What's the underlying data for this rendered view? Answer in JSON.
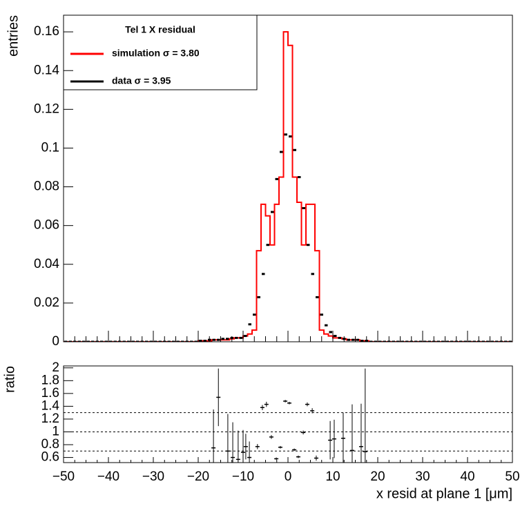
{
  "chart_data": [
    {
      "type": "histogram",
      "ylabel": "entries",
      "legend_title": "Tel 1 X residual",
      "legend": "top-left",
      "xlim": [
        -50,
        50
      ],
      "ylim": [
        0,
        0.1686
      ],
      "yticks": [
        0,
        0.02,
        0.04,
        0.06,
        0.08,
        0.1,
        0.12,
        0.14,
        0.16
      ],
      "bins": [
        -50,
        -49,
        -48,
        -47,
        -46,
        -45,
        -44,
        -43,
        -42,
        -41,
        -40,
        -39,
        -38,
        -37,
        -36,
        -35,
        -34,
        -33,
        -32,
        -31,
        -30,
        -29,
        -28,
        -27,
        -26,
        -25,
        -24,
        -23,
        -22,
        -21,
        -20,
        -19,
        -18,
        -17,
        -16,
        -15,
        -14,
        -13,
        -12,
        -11,
        -10,
        -9,
        -8,
        -7,
        -6,
        -5,
        -4,
        -3,
        -2,
        -1,
        0,
        1,
        2,
        3,
        4,
        5,
        6,
        7,
        8,
        9,
        10,
        11,
        12,
        13,
        14,
        15,
        16,
        17,
        18,
        19,
        20,
        21,
        22,
        23,
        24,
        25,
        26,
        27,
        28,
        29,
        30,
        31,
        32,
        33,
        34,
        35,
        36,
        37,
        38,
        39,
        40,
        41,
        42,
        43,
        44,
        45,
        46,
        47,
        48,
        49,
        50
      ],
      "series": [
        {
          "name": "simulation  σ = 3.80",
          "color": "#ff0000",
          "style": "step",
          "values": [
            0,
            0,
            0,
            0,
            0,
            0,
            0,
            0,
            0,
            0,
            0,
            0,
            0,
            0,
            0,
            0,
            0,
            0,
            0,
            0,
            0,
            0,
            0,
            0,
            0,
            0,
            0,
            0,
            0,
            0,
            0.0005,
            0.0005,
            0.0005,
            0.001,
            0.001,
            0.001,
            0.001,
            0.0015,
            0.002,
            0.002,
            0.003,
            0.004,
            0.006,
            0.047,
            0.071,
            0.065,
            0.05,
            0.071,
            0.085,
            0.16,
            0.153,
            0.085,
            0.072,
            0.05,
            0.071,
            0.071,
            0.047,
            0.006,
            0.004,
            0.003,
            0.002,
            0.002,
            0.0015,
            0.001,
            0.001,
            0.001,
            0.0005,
            0.0005,
            0,
            0,
            0,
            0,
            0,
            0,
            0,
            0,
            0,
            0,
            0,
            0,
            0,
            0,
            0,
            0,
            0,
            0,
            0,
            0,
            0,
            0,
            0,
            0,
            0,
            0,
            0,
            0,
            0,
            0,
            0,
            0
          ]
        },
        {
          "name": "data  σ = 3.95",
          "color": "#000000",
          "style": "points",
          "values": [
            0,
            0,
            0,
            0,
            0,
            0,
            0,
            0,
            0,
            0,
            0,
            0,
            0,
            0,
            0,
            0,
            0,
            0,
            0,
            0,
            0,
            0,
            0,
            0,
            0,
            0,
            0,
            0,
            0,
            0,
            0.0005,
            0.0005,
            0.001,
            0.001,
            0.001,
            0.0015,
            0.0015,
            0.002,
            0.002,
            0.002,
            0.003,
            0.009,
            0.014,
            0.023,
            0.035,
            0.05,
            0.067,
            0.084,
            0.098,
            0.107,
            0.106,
            0.099,
            0.085,
            0.069,
            0.05,
            0.035,
            0.023,
            0.014,
            0.0085,
            0.005,
            0.003,
            0.002,
            0.0015,
            0.001,
            0.001,
            0.001,
            0.0005,
            0.0005,
            0,
            0,
            0,
            0,
            0,
            0,
            0,
            0,
            0,
            0,
            0,
            0,
            0,
            0,
            0,
            0,
            0,
            0,
            0,
            0,
            0,
            0,
            0,
            0,
            0,
            0,
            0,
            0,
            0,
            0,
            0,
            0
          ]
        }
      ]
    },
    {
      "type": "errorbar",
      "xlabel": "x resid at plane 1 [μm]",
      "ylabel": "ratio",
      "xlim": [
        -50,
        50
      ],
      "ylim": [
        0.52,
        2.03
      ],
      "xticks": [
        {
          "value": -50,
          "label": "−50"
        },
        {
          "value": -40,
          "label": "−40"
        },
        {
          "value": -30,
          "label": "−30"
        },
        {
          "value": -20,
          "label": "−20"
        },
        {
          "value": -10,
          "label": "−10"
        },
        0,
        10,
        20,
        30,
        40,
        50
      ],
      "yticks": [
        0.6,
        0.8,
        1,
        1.2,
        1.4,
        1.6,
        1.8,
        2
      ],
      "hlines": [
        0.7,
        1,
        1.3
      ],
      "color": "#000000",
      "x": [
        -16.6,
        -15.5,
        -13.4,
        -12.3,
        -11.1,
        -10,
        -9.4,
        -8.6,
        -6.8,
        -5.7,
        -4.8,
        -3.7,
        -2.6,
        -1.7,
        -0.6,
        0.3,
        1.4,
        2.3,
        3.4,
        4.3,
        5.4,
        6.3,
        9.4,
        10.3,
        12.3,
        14.3,
        16.3,
        17.2
      ],
      "values": [
        0.75,
        1.54,
        0.7,
        0.6,
        0.57,
        0.68,
        0.77,
        0.6,
        0.77,
        1.38,
        1.43,
        0.92,
        0.58,
        0.76,
        1.48,
        1.45,
        0.72,
        0.61,
        0.99,
        1.43,
        1.33,
        0.59,
        0.87,
        0.89,
        0.9,
        0.71,
        0.77,
        0.69
      ],
      "errors": [
        0.6,
        0.45,
        0.58,
        0.55,
        0.45,
        0.35,
        0.2,
        0.25,
        0.04,
        0.04,
        0.04,
        0.03,
        0.02,
        0.02,
        0.02,
        0.02,
        0.02,
        0.02,
        0.03,
        0.03,
        0.04,
        0.04,
        0.3,
        0.3,
        0.4,
        0.72,
        0.67,
        1.3
      ]
    }
  ]
}
